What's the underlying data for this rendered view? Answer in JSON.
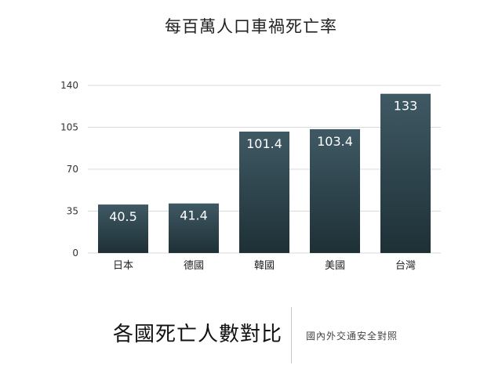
{
  "chart_data": {
    "type": "bar",
    "title": "每百萬人口車禍死亡率",
    "categories": [
      "日本",
      "德國",
      "韓國",
      "美國",
      "台灣"
    ],
    "values": [
      40.5,
      41.4,
      101.4,
      103.4,
      133
    ],
    "value_labels": [
      "40.5",
      "41.4",
      "101.4",
      "103.4",
      "133"
    ],
    "ylim": [
      0,
      140
    ],
    "yticks": [
      0,
      35,
      70,
      105,
      140
    ],
    "xlabel": "",
    "ylabel": "",
    "grid": true,
    "legend": "none",
    "colors": {
      "bar_top": "#3f5964",
      "bar_bottom": "#1e3036",
      "value_label": "#ffffff",
      "grid": "#d9d9d9"
    }
  },
  "footer": {
    "title": "各國死亡人數對比",
    "subtitle": "國內外交通安全對照"
  }
}
